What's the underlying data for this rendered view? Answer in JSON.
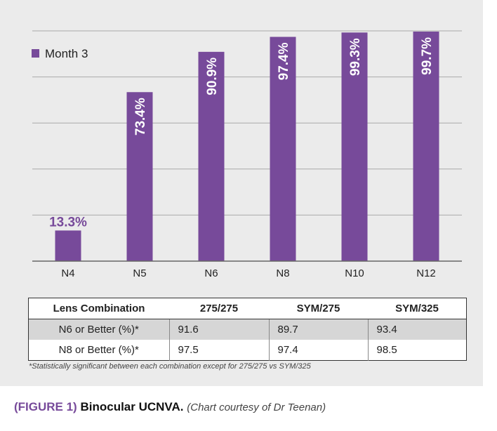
{
  "colors": {
    "bar": "#774a9a",
    "panel": "#ebebeb",
    "grid": "#aaaaaa"
  },
  "chart_data": {
    "type": "bar",
    "title": "",
    "xlabel": "",
    "ylabel": "",
    "categories": [
      "N4",
      "N5",
      "N6",
      "N8",
      "N10",
      "N12"
    ],
    "series": [
      {
        "name": "Month 3",
        "values": [
          13.3,
          73.4,
          90.9,
          97.4,
          99.3,
          99.7
        ],
        "labels": [
          "13.3%",
          "73.4%",
          "90.9%",
          "97.4%",
          "99.3%",
          "99.7%"
        ]
      }
    ],
    "ylim": [
      0,
      100
    ],
    "y_gridlines": [
      20,
      40,
      60,
      80,
      100
    ],
    "grid": true,
    "legend": "top-left"
  },
  "table": {
    "headers": [
      "Lens Combination",
      "275/275",
      "SYM/275",
      "SYM/325"
    ],
    "rows": [
      [
        "N6 or Better (%)*",
        "91.6",
        "89.7",
        "93.4"
      ],
      [
        "N8 or Better (%)*",
        "97.5",
        "97.4",
        "98.5"
      ]
    ]
  },
  "footnote": "*Statistically significant between each combination except for 275/275 vs SYM/325",
  "caption": {
    "figure_label": "(FIGURE 1)",
    "title": "Binocular UCNVA.",
    "credit": "(Chart courtesy of Dr Teenan)"
  }
}
